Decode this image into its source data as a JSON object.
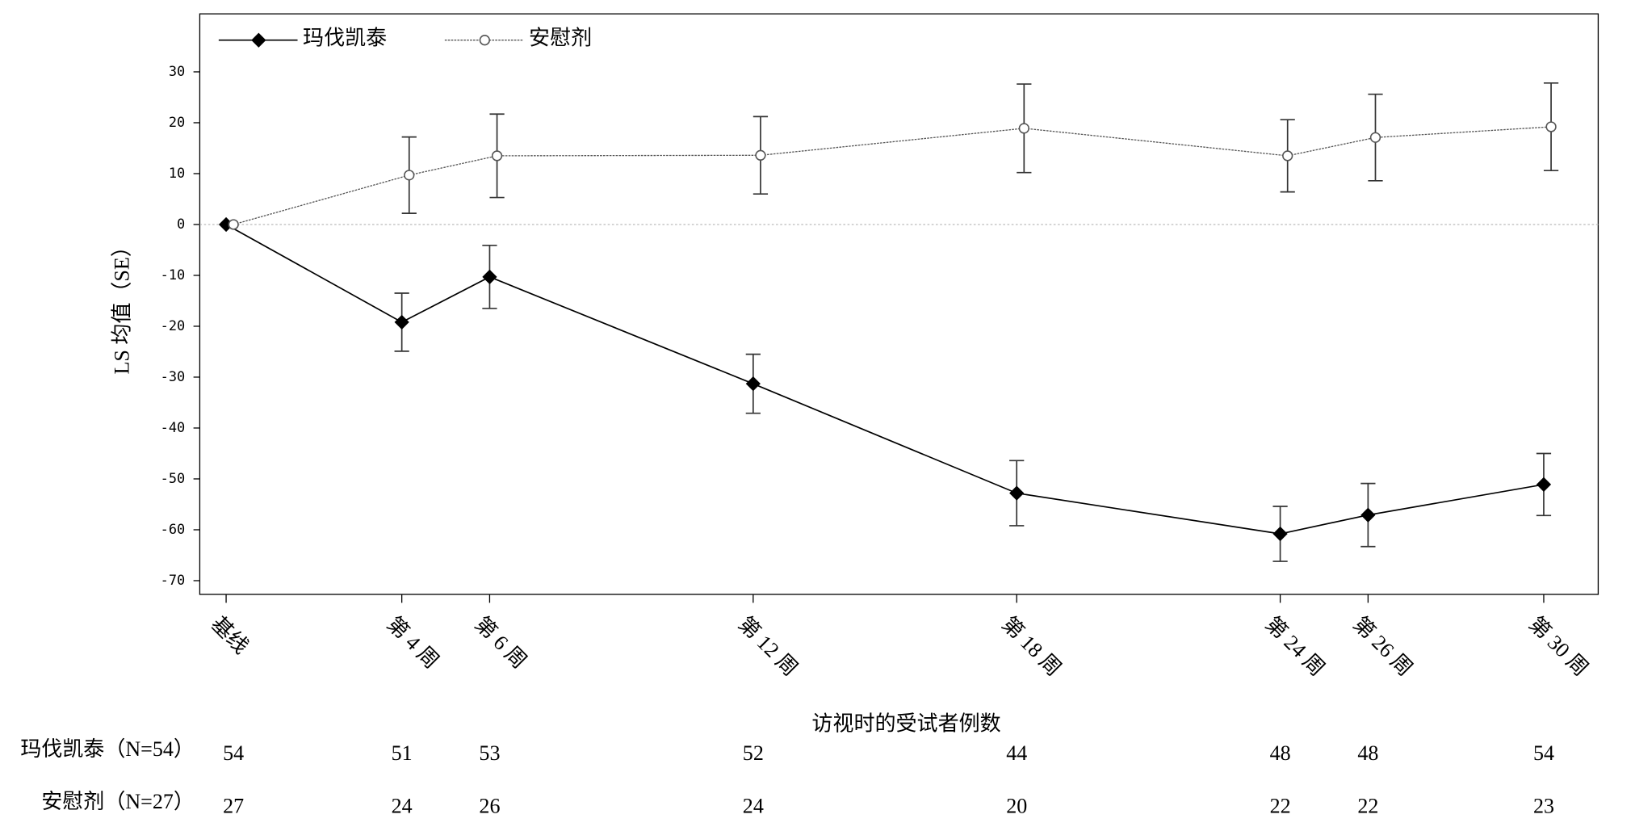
{
  "chart_data": {
    "type": "line",
    "y_label": "LS 均值（SE）",
    "x": [
      0,
      4,
      6,
      12,
      18,
      24,
      26,
      30
    ],
    "xlim": [
      -0.6,
      31.24
    ],
    "xticks": [
      {
        "value": 0,
        "label": "基线"
      },
      {
        "value": 4,
        "label": "第 4 周"
      },
      {
        "value": 6,
        "label": "第 6 周"
      },
      {
        "value": 12,
        "label": "第 12 周"
      },
      {
        "value": 18,
        "label": "第 18 周"
      },
      {
        "value": 24,
        "label": "第 24 周"
      },
      {
        "value": 26,
        "label": "第 26 周"
      },
      {
        "value": 30,
        "label": "第 30 周"
      }
    ],
    "ylim": [
      -72.7,
      41.4
    ],
    "yticks": [
      30,
      20,
      10,
      0,
      -10,
      -20,
      -30,
      -40,
      -50,
      -60,
      -70
    ],
    "reference_line": 0,
    "legend": "top-left",
    "series": [
      {
        "name": "玛伐凯泰",
        "color": "#000000",
        "marker": "diamond",
        "dash": "solid",
        "values": [
          0,
          -19.2,
          -10.3,
          -31.3,
          -52.8,
          -60.8,
          -57.1,
          -51.1
        ],
        "errors": [
          null,
          5.7,
          6.2,
          5.8,
          6.4,
          5.4,
          6.2,
          6.1
        ]
      },
      {
        "name": "安慰剂",
        "color": "#555555",
        "marker": "circle",
        "dash": "dotted",
        "values": [
          0,
          9.7,
          13.5,
          13.6,
          18.9,
          13.5,
          17.1,
          19.2
        ],
        "errors": [
          null,
          7.5,
          8.2,
          7.6,
          8.7,
          7.1,
          8.5,
          8.6
        ]
      }
    ],
    "table": {
      "title": "访视时的受试者例数",
      "rows": [
        {
          "label": "玛伐凯泰（N=54）",
          "counts": [
            54,
            51,
            53,
            52,
            44,
            48,
            48,
            54
          ]
        },
        {
          "label": "安慰剂（N=27）",
          "counts": [
            27,
            24,
            26,
            24,
            20,
            22,
            22,
            23
          ]
        }
      ]
    }
  }
}
